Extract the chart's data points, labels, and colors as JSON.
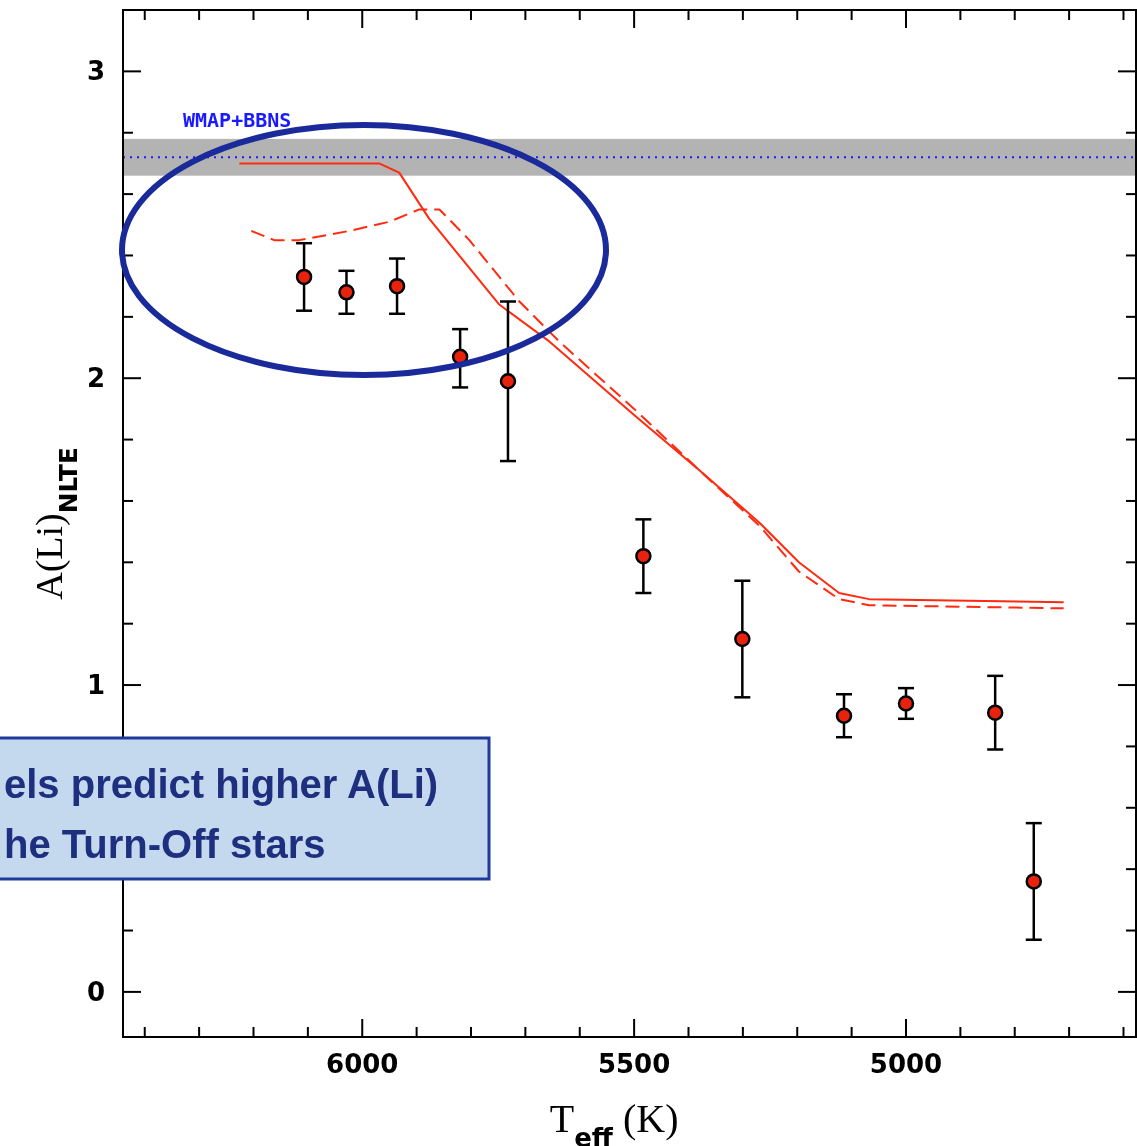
{
  "chart_data": {
    "type": "scatter",
    "xlabel": "T$_{eff}$ (K)",
    "ylabel": "A(Li)$_{NLTE}$",
    "xlim": [
      6440,
      4577
    ],
    "ylim": [
      -0.147,
      3.2
    ],
    "xticks": [
      {
        "value": 6400,
        "label": null
      },
      {
        "value": 6300,
        "label": null
      },
      {
        "value": 6200,
        "label": null
      },
      {
        "value": 6100,
        "label": null
      },
      6000,
      {
        "value": 5900,
        "label": null
      },
      {
        "value": 5800,
        "label": null
      },
      {
        "value": 5700,
        "label": null
      },
      {
        "value": 5600,
        "label": null
      },
      5500,
      {
        "value": 5400,
        "label": null
      },
      {
        "value": 5300,
        "label": null
      },
      {
        "value": 5200,
        "label": null
      },
      {
        "value": 5100,
        "label": null
      },
      5000,
      {
        "value": 4900,
        "label": null
      },
      {
        "value": 4800,
        "label": null
      },
      {
        "value": 4700,
        "label": null
      },
      {
        "value": 4600,
        "label": null
      }
    ],
    "yticks": [
      0,
      {
        "value": 0.2,
        "label": null
      },
      {
        "value": 0.4,
        "label": null
      },
      {
        "value": 0.6,
        "label": null
      },
      {
        "value": 0.8,
        "label": null
      },
      1,
      {
        "value": 1.2,
        "label": null
      },
      {
        "value": 1.4,
        "label": null
      },
      {
        "value": 1.6,
        "label": null
      },
      {
        "value": 1.8,
        "label": null
      },
      2,
      {
        "value": 2.2,
        "label": null
      },
      {
        "value": 2.4,
        "label": null
      },
      {
        "value": 2.6,
        "label": null
      },
      {
        "value": 2.8,
        "label": null
      },
      3
    ],
    "grid": false,
    "series": [
      {
        "type": "line",
        "color": "#ff2a10",
        "line_style": "solid",
        "x": [
          6226,
          5969,
          5932,
          5877,
          5748,
          5656,
          5500,
          5380,
          5270,
          5197,
          5123,
          5068,
          4710
        ],
        "values": [
          2.7,
          2.7,
          2.67,
          2.52,
          2.24,
          2.12,
          1.88,
          1.7,
          1.53,
          1.4,
          1.3,
          1.28,
          1.27
        ]
      },
      {
        "type": "line",
        "color": "#ff2a10",
        "line_style": "dashed",
        "x": [
          6204,
          6162,
          6116,
          6024,
          5950,
          5895,
          5858,
          5803,
          5711,
          5638,
          5500,
          5380,
          5270,
          5197,
          5123,
          5068,
          4710
        ],
        "values": [
          2.48,
          2.45,
          2.45,
          2.48,
          2.51,
          2.55,
          2.55,
          2.45,
          2.25,
          2.12,
          1.9,
          1.7,
          1.52,
          1.37,
          1.28,
          1.26,
          1.25
        ]
      },
      {
        "color": "#e8220c",
        "marker": "circle",
        "x": [
          6107,
          6029,
          5936,
          5820,
          5732,
          5483,
          5301,
          5114,
          5000,
          4836,
          4765
        ],
        "values": [
          2.33,
          2.28,
          2.3,
          2.07,
          1.99,
          1.42,
          1.15,
          0.9,
          0.94,
          0.91,
          0.36
        ],
        "errors": [
          [
            2.22,
            2.44
          ],
          [
            2.21,
            2.35
          ],
          [
            2.21,
            2.39
          ],
          [
            1.97,
            2.16
          ],
          [
            1.73,
            2.25
          ],
          [
            1.3,
            1.54
          ],
          [
            0.96,
            1.34
          ],
          [
            0.83,
            0.97
          ],
          [
            0.89,
            0.99
          ],
          [
            0.79,
            1.03
          ],
          [
            0.17,
            0.55
          ]
        ]
      }
    ],
    "ref_lines": [
      {
        "axis": "y",
        "value": 2.72,
        "label": "WMAP+BBNS",
        "color": "#1a1aff",
        "line_style": "dotted"
      }
    ],
    "bands": [
      {
        "axis": "y",
        "from": 2.66,
        "to": 2.78,
        "color": "#b3b3b3"
      }
    ],
    "annotations": [
      "els predict higher A(Li)",
      "he Turn-Off stars"
    ]
  }
}
